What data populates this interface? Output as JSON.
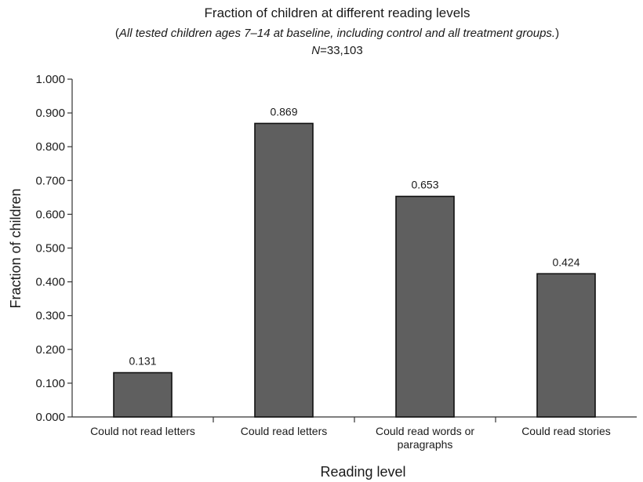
{
  "chart_data": {
    "type": "bar",
    "title": "Fraction of children at different reading levels",
    "subtitle": "All tested children ages 7–14 at baseline, including control and all treatment groups.",
    "sample_size": {
      "letter": "N",
      "equals": "=",
      "value": "33,103"
    },
    "categories": [
      [
        "Could not read letters"
      ],
      [
        "Could read letters"
      ],
      [
        "Could read words or",
        "paragraphs"
      ],
      [
        "Could read stories"
      ]
    ],
    "values": [
      0.131,
      0.869,
      0.653,
      0.424
    ],
    "data_labels": [
      "0.131",
      "0.869",
      "0.653",
      "0.424"
    ],
    "xlabel": "Reading level",
    "ylabel": "Fraction of children",
    "ylim": [
      0,
      1
    ],
    "yticks": [
      "0.000",
      "0.100",
      "0.200",
      "0.300",
      "0.400",
      "0.500",
      "0.600",
      "0.700",
      "0.800",
      "0.900",
      "1.000"
    ],
    "grid": false,
    "legend": "none",
    "colors": {
      "bar_fill": "#5f5f5f",
      "bar_stroke": "#111111"
    }
  }
}
